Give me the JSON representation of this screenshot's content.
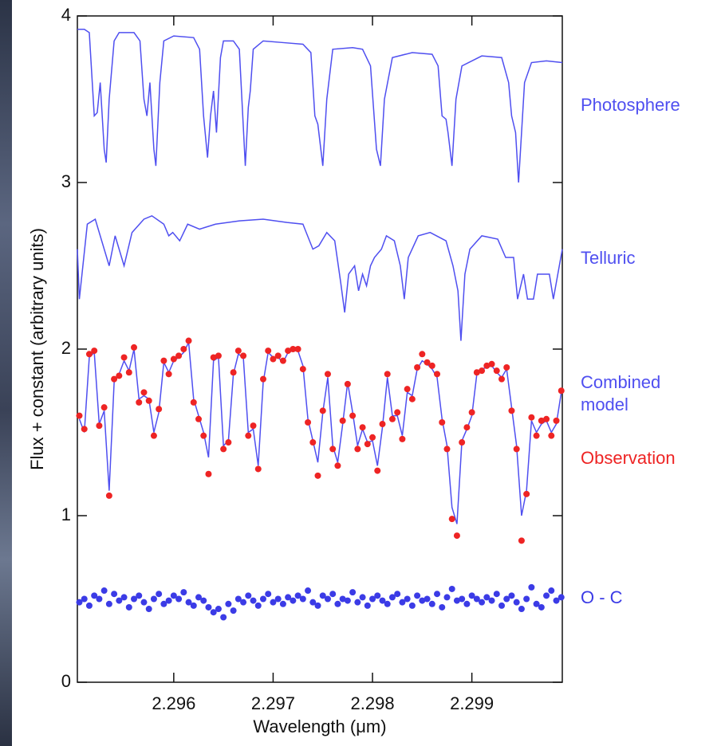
{
  "chart_data": {
    "type": "line",
    "x_label": "Wavelength (μm)",
    "y_label": "Flux + constant (arbitrary units)",
    "xlim": [
      2.29503,
      2.29991
    ],
    "ylim": [
      0,
      4
    ],
    "xticks": [
      2.296,
      2.297,
      2.298,
      2.299
    ],
    "yticks": [
      0,
      1,
      2,
      3,
      4
    ],
    "grid": false,
    "x": [
      2.29505,
      2.2951,
      2.29515,
      2.2952,
      2.29525,
      2.2953,
      2.29535,
      2.2954,
      2.29545,
      2.2955,
      2.29555,
      2.2956,
      2.29565,
      2.2957,
      2.29575,
      2.2958,
      2.29585,
      2.2959,
      2.29595,
      2.296,
      2.29605,
      2.2961,
      2.29615,
      2.2962,
      2.29625,
      2.2963,
      2.29635,
      2.2964,
      2.29645,
      2.2965,
      2.29655,
      2.2966,
      2.29665,
      2.2967,
      2.29675,
      2.2968,
      2.29685,
      2.2969,
      2.29695,
      2.297,
      2.29705,
      2.2971,
      2.29715,
      2.2972,
      2.29725,
      2.2973,
      2.29735,
      2.2974,
      2.29745,
      2.2975,
      2.29755,
      2.2976,
      2.29765,
      2.2977,
      2.29775,
      2.2978,
      2.29785,
      2.2979,
      2.29795,
      2.298,
      2.29805,
      2.2981,
      2.29815,
      2.2982,
      2.29825,
      2.2983,
      2.29835,
      2.2984,
      2.29845,
      2.2985,
      2.29855,
      2.2986,
      2.29865,
      2.2987,
      2.29875,
      2.2988,
      2.29885,
      2.2989,
      2.29895,
      2.299,
      2.29905,
      2.2991,
      2.29915,
      2.2992,
      2.29925,
      2.2993,
      2.29935,
      2.2994,
      2.29945,
      2.2995,
      2.29955,
      2.2996,
      2.29965,
      2.2997,
      2.29975,
      2.2998,
      2.29985,
      2.2999
    ],
    "series": [
      {
        "name": "Photosphere",
        "color": "#4f4ff0",
        "mode": "line",
        "x": [
          2.29503,
          2.2951,
          2.29515,
          2.29518,
          2.2952,
          2.29523,
          2.29526,
          2.2953,
          2.29532,
          2.29535,
          2.2954,
          2.29545,
          2.2956,
          2.29566,
          2.2957,
          2.29573,
          2.29576,
          2.2958,
          2.29582,
          2.29586,
          2.2959,
          2.296,
          2.2962,
          2.29626,
          2.2963,
          2.29634,
          2.29637,
          2.2964,
          2.29643,
          2.29647,
          2.2965,
          2.2966,
          2.29666,
          2.29672,
          2.29675,
          2.29677,
          2.2968,
          2.2969,
          2.2971,
          2.2973,
          2.29738,
          2.29742,
          2.29745,
          2.2975,
          2.29754,
          2.2976,
          2.2978,
          2.2979,
          2.29798,
          2.29804,
          2.29808,
          2.29812,
          2.2982,
          2.2984,
          2.2986,
          2.29866,
          2.2987,
          2.29874,
          2.29876,
          2.2988,
          2.29884,
          2.2989,
          2.2991,
          2.2993,
          2.29937,
          2.2994,
          2.29944,
          2.29947,
          2.2995,
          2.29953,
          2.2996,
          2.29975,
          2.29991
        ],
        "values": [
          3.92,
          3.92,
          3.9,
          3.6,
          3.4,
          3.42,
          3.6,
          3.2,
          3.12,
          3.5,
          3.85,
          3.9,
          3.9,
          3.85,
          3.5,
          3.4,
          3.6,
          3.2,
          3.1,
          3.6,
          3.85,
          3.88,
          3.87,
          3.8,
          3.4,
          3.15,
          3.4,
          3.55,
          3.3,
          3.75,
          3.85,
          3.85,
          3.8,
          3.1,
          3.45,
          3.55,
          3.8,
          3.85,
          3.84,
          3.83,
          3.78,
          3.4,
          3.35,
          3.1,
          3.5,
          3.8,
          3.81,
          3.8,
          3.7,
          3.2,
          3.1,
          3.5,
          3.75,
          3.78,
          3.77,
          3.7,
          3.4,
          3.38,
          3.3,
          3.1,
          3.5,
          3.7,
          3.76,
          3.75,
          3.6,
          3.4,
          3.3,
          3.0,
          3.3,
          3.6,
          3.72,
          3.73,
          3.72
        ]
      },
      {
        "name": "Telluric",
        "color": "#4f4ff0",
        "mode": "line",
        "x": [
          2.29503,
          2.29505,
          2.29513,
          2.29521,
          2.29535,
          2.29541,
          2.2955,
          2.29558,
          2.2957,
          2.29578,
          2.2959,
          2.29595,
          2.29599,
          2.29606,
          2.29614,
          2.29626,
          2.29642,
          2.29666,
          2.2969,
          2.29714,
          2.2973,
          2.2974,
          2.29746,
          2.29754,
          2.29762,
          2.29768,
          2.29772,
          2.29776,
          2.29782,
          2.29786,
          2.2979,
          2.29794,
          2.29798,
          2.29802,
          2.29809,
          2.29814,
          2.29822,
          2.29828,
          2.29832,
          2.29836,
          2.29846,
          2.29858,
          2.29874,
          2.29881,
          2.29886,
          2.29889,
          2.29893,
          2.29898,
          2.2991,
          2.29926,
          2.29934,
          2.29942,
          2.29946,
          2.29952,
          2.29956,
          2.29962,
          2.29966,
          2.29978,
          2.29982,
          2.29991
        ],
        "values": [
          2.6,
          2.3,
          2.75,
          2.78,
          2.5,
          2.68,
          2.5,
          2.7,
          2.78,
          2.8,
          2.75,
          2.68,
          2.7,
          2.65,
          2.75,
          2.72,
          2.75,
          2.77,
          2.78,
          2.76,
          2.75,
          2.6,
          2.62,
          2.7,
          2.65,
          2.4,
          2.22,
          2.45,
          2.5,
          2.35,
          2.45,
          2.38,
          2.5,
          2.55,
          2.6,
          2.68,
          2.65,
          2.5,
          2.3,
          2.55,
          2.68,
          2.7,
          2.65,
          2.5,
          2.35,
          2.05,
          2.45,
          2.6,
          2.68,
          2.66,
          2.55,
          2.55,
          2.3,
          2.45,
          2.3,
          2.3,
          2.45,
          2.45,
          2.3,
          2.6
        ]
      },
      {
        "name": "Combined model",
        "color": "#4f4ff0",
        "mode": "line",
        "values": [
          1.58,
          1.5,
          1.95,
          1.98,
          1.55,
          1.63,
          1.15,
          1.8,
          1.85,
          1.93,
          1.87,
          2.0,
          1.7,
          1.72,
          1.7,
          1.5,
          1.62,
          1.92,
          1.86,
          1.93,
          1.95,
          1.98,
          2.04,
          1.7,
          1.6,
          1.5,
          1.35,
          1.93,
          1.95,
          1.42,
          1.45,
          1.85,
          1.97,
          1.95,
          1.5,
          1.52,
          1.3,
          1.8,
          1.98,
          1.95,
          1.95,
          1.92,
          1.98,
          1.99,
          1.99,
          1.9,
          1.58,
          1.45,
          1.32,
          1.62,
          1.83,
          1.42,
          1.32,
          1.55,
          1.8,
          1.62,
          1.42,
          1.52,
          1.44,
          1.45,
          1.3,
          1.53,
          1.83,
          1.6,
          1.6,
          1.48,
          1.74,
          1.72,
          1.88,
          1.93,
          1.91,
          1.88,
          1.83,
          1.58,
          1.42,
          1.05,
          0.95,
          1.45,
          1.52,
          1.6,
          1.85,
          1.88,
          1.89,
          1.9,
          1.86,
          1.83,
          1.88,
          1.65,
          1.42,
          1.0,
          1.15,
          1.57,
          1.5,
          1.55,
          1.57,
          1.5,
          1.55,
          1.74
        ]
      },
      {
        "name": "Observation",
        "color": "#ee2424",
        "mode": "points",
        "values": [
          1.6,
          1.52,
          1.97,
          1.99,
          1.54,
          1.65,
          1.12,
          1.82,
          1.84,
          1.95,
          1.86,
          2.01,
          1.68,
          1.74,
          1.69,
          1.48,
          1.64,
          1.93,
          1.85,
          1.94,
          1.96,
          2.0,
          2.05,
          1.68,
          1.58,
          1.48,
          1.25,
          1.95,
          1.96,
          1.4,
          1.44,
          1.86,
          1.99,
          1.96,
          1.48,
          1.54,
          1.28,
          1.82,
          1.99,
          1.94,
          1.96,
          1.93,
          1.99,
          2.0,
          2.0,
          1.88,
          1.56,
          1.44,
          1.24,
          1.63,
          1.85,
          1.4,
          1.3,
          1.57,
          1.79,
          1.6,
          1.4,
          1.53,
          1.43,
          1.47,
          1.27,
          1.55,
          1.85,
          1.58,
          1.62,
          1.46,
          1.76,
          1.7,
          1.89,
          1.97,
          1.92,
          1.9,
          1.85,
          1.56,
          1.4,
          0.98,
          0.88,
          1.44,
          1.53,
          1.62,
          1.86,
          1.87,
          1.9,
          1.91,
          1.87,
          1.82,
          1.89,
          1.63,
          1.4,
          0.85,
          1.13,
          1.59,
          1.48,
          1.57,
          1.58,
          1.48,
          1.57,
          1.75
        ]
      },
      {
        "name": "O - C",
        "color": "#3b3be6",
        "mode": "points",
        "values": [
          0.48,
          0.5,
          0.46,
          0.52,
          0.5,
          0.55,
          0.47,
          0.53,
          0.49,
          0.51,
          0.45,
          0.5,
          0.52,
          0.48,
          0.44,
          0.5,
          0.53,
          0.47,
          0.49,
          0.52,
          0.5,
          0.54,
          0.48,
          0.46,
          0.51,
          0.49,
          0.45,
          0.42,
          0.44,
          0.39,
          0.47,
          0.43,
          0.5,
          0.48,
          0.52,
          0.49,
          0.46,
          0.5,
          0.53,
          0.48,
          0.5,
          0.47,
          0.51,
          0.49,
          0.52,
          0.5,
          0.55,
          0.48,
          0.46,
          0.52,
          0.5,
          0.53,
          0.47,
          0.5,
          0.49,
          0.54,
          0.48,
          0.51,
          0.46,
          0.5,
          0.52,
          0.49,
          0.47,
          0.51,
          0.53,
          0.48,
          0.5,
          0.46,
          0.52,
          0.49,
          0.5,
          0.47,
          0.53,
          0.45,
          0.51,
          0.56,
          0.49,
          0.5,
          0.47,
          0.52,
          0.5,
          0.48,
          0.51,
          0.49,
          0.53,
          0.46,
          0.5,
          0.52,
          0.48,
          0.44,
          0.5,
          0.57,
          0.47,
          0.45,
          0.52,
          0.55,
          0.49,
          0.51
        ]
      }
    ]
  }
}
